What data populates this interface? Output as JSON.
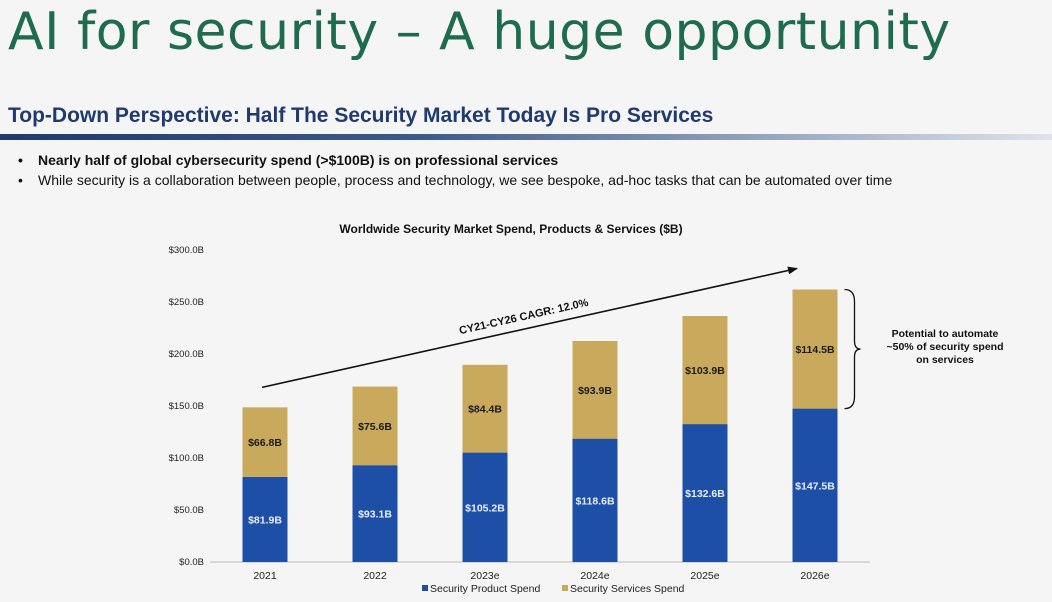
{
  "slide": {
    "title": "AI for security – A huge opportunity",
    "subtitle": "Top-Down Perspective: Half The Security Market Today Is Pro Services",
    "bullets": [
      "Nearly half of global cybersecurity spend (>$100B) is on professional services",
      "While security is a collaboration between people, process and technology, we see bespoke, ad-hoc tasks that can be automated over time"
    ]
  },
  "colors": {
    "product": "#1d4fa6",
    "services": "#c9aa5c",
    "title": "#1f6b4f",
    "subtitle": "#1e3a6e"
  },
  "chart_data": {
    "type": "bar",
    "stacked": true,
    "title": "Worldwide Security Market Spend, Products & Services ($B)",
    "categories": [
      "2021",
      "2022",
      "2023e",
      "2024e",
      "2025e",
      "2026e"
    ],
    "series": [
      {
        "name": "Security Product Spend",
        "values": [
          81.9,
          93.1,
          105.2,
          118.6,
          132.6,
          147.5
        ],
        "labels": [
          "$81.9B",
          "$93.1B",
          "$105.2B",
          "$118.6B",
          "$132.6B",
          "$147.5B"
        ]
      },
      {
        "name": "Security Services Spend",
        "values": [
          66.8,
          75.6,
          84.4,
          93.9,
          103.9,
          114.5
        ],
        "labels": [
          "$66.8B",
          "$75.6B",
          "$84.4B",
          "$93.9B",
          "$103.9B",
          "$114.5B"
        ]
      }
    ],
    "ylim": [
      0,
      300
    ],
    "yticks": [
      0,
      50,
      100,
      150,
      200,
      250,
      300
    ],
    "ytick_labels": [
      "$0.0B",
      "$50.0B",
      "$100.0B",
      "$150.0B",
      "$200.0B",
      "$250.0B",
      "$300.0B"
    ],
    "legend_position": "bottom",
    "annotations": {
      "cagr": "CY21-CY26 CAGR: 12.0%",
      "potential": [
        "Potential to automate",
        "~50% of security spend",
        "on services"
      ]
    }
  }
}
